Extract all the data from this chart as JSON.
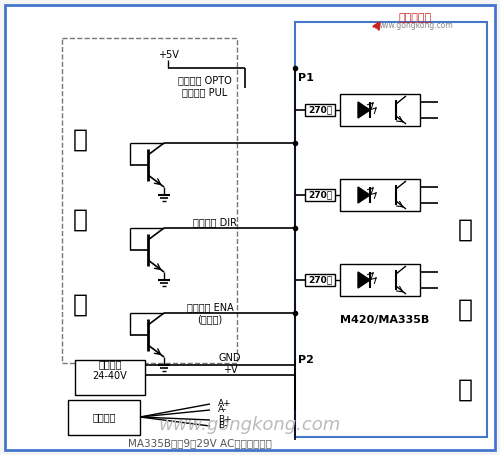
{
  "bg_color": "#f5f5f5",
  "outer_border_color": "#4477cc",
  "inner_bg": "#ffffff",
  "title_text": "MA335B可用9～29V AC交流电源输入",
  "watermark": "www.gongkong.com",
  "logo_text": "中国工控网",
  "logo_url": "www.gongkong.com",
  "model_text": "M420/MA335B",
  "control_chars": [
    "控",
    "制",
    "器"
  ],
  "drive_chars": [
    "驱",
    "动",
    "器"
  ],
  "p1_label": "P1",
  "p2_label": "P2",
  "opto_label": "光隔电源 OPTO",
  "pul_label": "脉冲信号 PUL",
  "dir_label": "方向信号 DIR",
  "ena_label": "使能信号 ENA",
  "float_label": "(可悬空)",
  "power_labels": [
    "GND",
    "+V"
  ],
  "motor_labels": [
    "A+",
    "A-",
    "B+",
    "B-"
  ],
  "dc_label": "直流电源\n24-40V",
  "motor_label": "步进电机",
  "vcc_label": "+5V",
  "resistor_label": "270欧",
  "dashed_border": "#777777"
}
